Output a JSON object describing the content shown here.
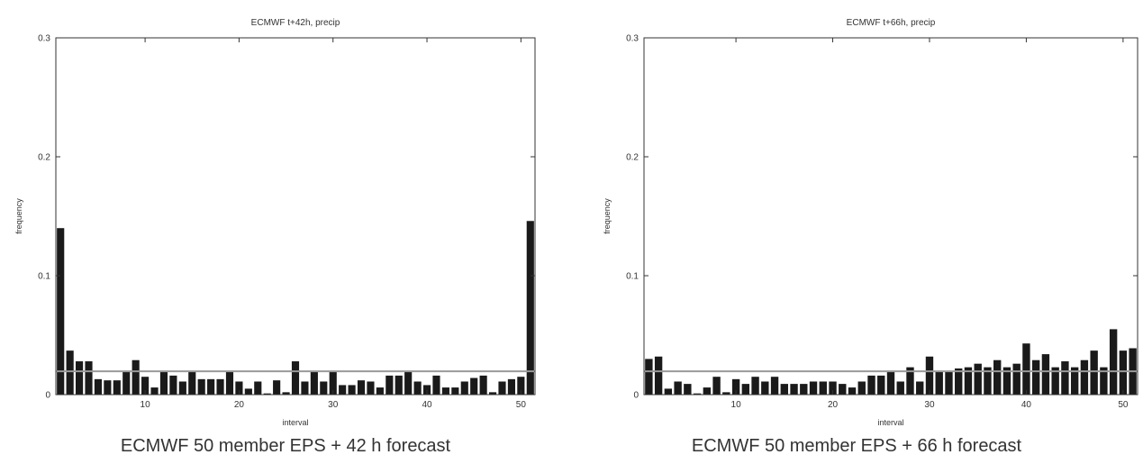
{
  "chart_data": [
    {
      "type": "bar",
      "title": "ECMWF  t+42h, precip",
      "xlabel": "interval",
      "ylabel": "frequency",
      "caption": "ECMWF 50 member EPS + 42 h forecast",
      "xlim": [
        0.5,
        51.5
      ],
      "ylim": [
        0,
        0.3
      ],
      "xticks": [
        10,
        20,
        30,
        40,
        50
      ],
      "yticks": [
        0,
        0.1,
        0.2,
        0.3
      ],
      "ytick_labels": [
        "0",
        "0.1",
        "0.2",
        "0.3"
      ],
      "reference_line": 0.0196,
      "x": [
        1,
        2,
        3,
        4,
        5,
        6,
        7,
        8,
        9,
        10,
        11,
        12,
        13,
        14,
        15,
        16,
        17,
        18,
        19,
        20,
        21,
        22,
        23,
        24,
        25,
        26,
        27,
        28,
        29,
        30,
        31,
        32,
        33,
        34,
        35,
        36,
        37,
        38,
        39,
        40,
        41,
        42,
        43,
        44,
        45,
        46,
        47,
        48,
        49,
        50,
        51
      ],
      "values": [
        0.14,
        0.037,
        0.028,
        0.028,
        0.013,
        0.012,
        0.012,
        0.019,
        0.029,
        0.015,
        0.006,
        0.02,
        0.016,
        0.011,
        0.019,
        0.013,
        0.013,
        0.013,
        0.019,
        0.011,
        0.005,
        0.011,
        0.001,
        0.012,
        0.002,
        0.028,
        0.011,
        0.019,
        0.011,
        0.019,
        0.008,
        0.008,
        0.012,
        0.011,
        0.006,
        0.016,
        0.016,
        0.019,
        0.011,
        0.008,
        0.016,
        0.006,
        0.006,
        0.011,
        0.014,
        0.016,
        0.002,
        0.011,
        0.013,
        0.015,
        0.146
      ],
      "bar_color": "#1a1a1a"
    },
    {
      "type": "bar",
      "title": "ECMWF  t+66h, precip",
      "xlabel": "interval",
      "ylabel": "frequency",
      "caption": "ECMWF 50 member EPS + 66 h forecast",
      "xlim": [
        0.5,
        51.5
      ],
      "ylim": [
        0,
        0.3
      ],
      "xticks": [
        10,
        20,
        30,
        40,
        50
      ],
      "yticks": [
        0,
        0.1,
        0.2,
        0.3
      ],
      "ytick_labels": [
        "0",
        "0.1",
        "0.2",
        "0.3"
      ],
      "reference_line": 0.0196,
      "x": [
        1,
        2,
        3,
        4,
        5,
        6,
        7,
        8,
        9,
        10,
        11,
        12,
        13,
        14,
        15,
        16,
        17,
        18,
        19,
        20,
        21,
        22,
        23,
        24,
        25,
        26,
        27,
        28,
        29,
        30,
        31,
        32,
        33,
        34,
        35,
        36,
        37,
        38,
        39,
        40,
        41,
        42,
        43,
        44,
        45,
        46,
        47,
        48,
        49,
        50,
        51
      ],
      "values": [
        0.03,
        0.032,
        0.005,
        0.011,
        0.009,
        0.001,
        0.006,
        0.015,
        0.002,
        0.013,
        0.009,
        0.015,
        0.011,
        0.015,
        0.009,
        0.009,
        0.009,
        0.011,
        0.011,
        0.011,
        0.009,
        0.006,
        0.011,
        0.016,
        0.016,
        0.019,
        0.011,
        0.023,
        0.011,
        0.032,
        0.019,
        0.019,
        0.022,
        0.023,
        0.026,
        0.023,
        0.029,
        0.023,
        0.026,
        0.043,
        0.029,
        0.034,
        0.023,
        0.028,
        0.023,
        0.029,
        0.037,
        0.023,
        0.055,
        0.037,
        0.039
      ],
      "bar_color": "#1a1a1a"
    }
  ],
  "colors": {
    "bar": "#1a1a1a",
    "reference_line": "#9a9a9a",
    "axis": "#333333"
  }
}
